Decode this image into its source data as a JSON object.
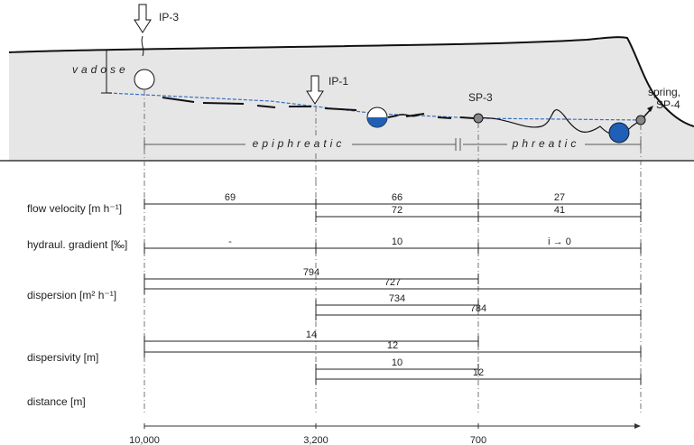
{
  "cross_section": {
    "ip3": "IP-3",
    "vadose": "vadose",
    "ip1": "IP-1",
    "sp3": "SP-3",
    "spring": "spring,",
    "sp4": "SP-4",
    "epiphreatic": "epiphreatic",
    "phreatic": "phreatic"
  },
  "rows": [
    {
      "label": "flow velocity [m h⁻¹]",
      "bars": [
        "69",
        "66",
        "27",
        "72",
        "41"
      ]
    },
    {
      "label": "hydraul. gradient [‰]",
      "bars": [
        "-",
        "10",
        "i → 0"
      ]
    },
    {
      "label": "dispersion [m² h⁻¹]",
      "bars": [
        "794",
        "727",
        "734",
        "784"
      ]
    },
    {
      "label": "dispersivity [m]",
      "bars": [
        "14",
        "12",
        "10",
        "12"
      ]
    }
  ],
  "distance": {
    "label": "distance [m]",
    "ticks": [
      "10,000",
      "3,200",
      "700"
    ]
  }
}
